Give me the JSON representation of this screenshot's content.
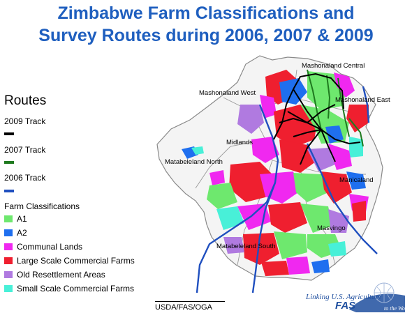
{
  "title": {
    "line1": "Zimbabwe Farm Classifications and",
    "line2": "Survey Routes during 2006, 2007 & 2009"
  },
  "legend": {
    "routes_title": "Routes",
    "routes": [
      {
        "label": "2009 Track",
        "color": "#000000"
      },
      {
        "label": "2007 Track",
        "color": "#1f7a1f"
      },
      {
        "label": "2006 Track",
        "color": "#1f4fbf"
      }
    ],
    "classifications_title": "Farm Classifications",
    "classifications": [
      {
        "label": "A1",
        "color": "#6ee86e"
      },
      {
        "label": "A2",
        "color": "#1f6fef"
      },
      {
        "label": "Communal Lands",
        "color": "#f028f0"
      },
      {
        "label": "Large Scale Commercial Farms",
        "color": "#ef1f2f"
      },
      {
        "label": "Old Resettlement Areas",
        "color": "#b07ae0"
      },
      {
        "label": "Small Scale Commercial Farms",
        "color": "#48f0d8"
      }
    ]
  },
  "map": {
    "regions": [
      "Mashonaland Central",
      "Mashonaland West",
      "Mashonaland East",
      "Midlands",
      "Matabeleland North",
      "Manicaland",
      "Masvingo",
      "Matabeleland South"
    ]
  },
  "footer": {
    "source": "USDA/FAS/OGA"
  },
  "logo": {
    "tagline": "Linking U.S. Agriculture",
    "name": "FAS",
    "suffix": "to the World"
  }
}
